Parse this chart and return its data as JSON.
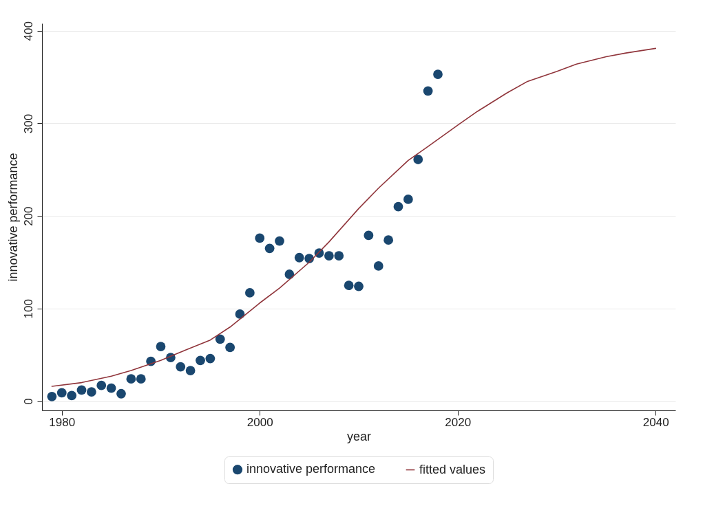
{
  "chart_data": {
    "type": "scatter",
    "xlabel": "year",
    "ylabel": "innovative performance",
    "xlim": [
      1978,
      2042
    ],
    "ylim": [
      -10,
      408
    ],
    "xticks": [
      1980,
      2000,
      2020,
      2040
    ],
    "yticks": [
      0,
      100,
      200,
      300,
      400
    ],
    "grid": "y",
    "legend": "bottom",
    "x": [
      1979,
      1980,
      1981,
      1982,
      1983,
      1984,
      1985,
      1986,
      1987,
      1988,
      1989,
      1990,
      1991,
      1992,
      1993,
      1994,
      1995,
      1996,
      1997,
      1998,
      1999,
      2000,
      2001,
      2002,
      2003,
      2004,
      2005,
      2006,
      2007,
      2008,
      2009,
      2010,
      2011,
      2012,
      2013,
      2014,
      2015,
      2016,
      2017,
      2018
    ],
    "series": [
      {
        "name": "innovative performance",
        "marker": "circle",
        "color": "#1a476f",
        "values": [
          5,
          9,
          6,
          12,
          10,
          17,
          14,
          8,
          24,
          24,
          43,
          59,
          47,
          37,
          33,
          44,
          46,
          67,
          58,
          94,
          117,
          176,
          165,
          173,
          137,
          155,
          154,
          160,
          157,
          157,
          125,
          124,
          179,
          146,
          174,
          210,
          218,
          261,
          335,
          353
        ]
      },
      {
        "name": "fitted values",
        "type": "line",
        "line_style": "solid",
        "color": "#90353b",
        "x": [
          1979,
          1982,
          1985,
          1987,
          1990,
          1992,
          1995,
          1997,
          2000,
          2002,
          2005,
          2007,
          2010,
          2012,
          2015,
          2017,
          2020,
          2022,
          2025,
          2027,
          2030,
          2032,
          2035,
          2037,
          2040
        ],
        "values": [
          16,
          20,
          27,
          33,
          44,
          53,
          66,
          80,
          106,
          122,
          150,
          172,
          208,
          230,
          260,
          275,
          298,
          313,
          333,
          345,
          356,
          364,
          372,
          376,
          381
        ]
      }
    ]
  }
}
